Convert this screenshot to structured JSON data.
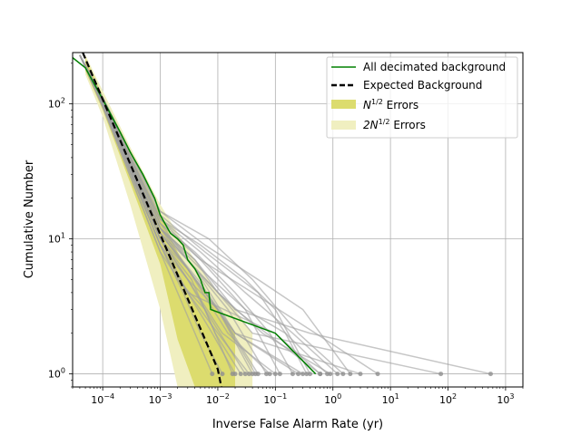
{
  "chart_data": {
    "type": "line",
    "xscale": "log",
    "yscale": "log",
    "xlabel": "Inverse False Alarm Rate (yr)",
    "ylabel": "Cumulative Number",
    "xlim": [
      3e-05,
      2000
    ],
    "ylim": [
      0.8,
      240
    ],
    "grid": true,
    "legend_position": "top-right",
    "x_ticks": [
      {
        "value": 0.0001,
        "base": "10",
        "exp": "−4"
      },
      {
        "value": 0.001,
        "base": "10",
        "exp": "−3"
      },
      {
        "value": 0.01,
        "base": "10",
        "exp": "−2"
      },
      {
        "value": 0.1,
        "base": "10",
        "exp": "−1"
      },
      {
        "value": 1,
        "base": "10",
        "exp": "0"
      },
      {
        "value": 10,
        "base": "10",
        "exp": "1"
      },
      {
        "value": 100,
        "base": "10",
        "exp": "2"
      },
      {
        "value": 1000,
        "base": "10",
        "exp": "3"
      }
    ],
    "y_ticks": [
      {
        "value": 1,
        "base": "10",
        "exp": "0"
      },
      {
        "value": 10,
        "base": "10",
        "exp": "1"
      },
      {
        "value": 100,
        "base": "10",
        "exp": "2"
      }
    ],
    "legend": [
      {
        "label": "All decimated background",
        "style": "line",
        "color": "#008000"
      },
      {
        "label": "Expected Background",
        "style": "dashed",
        "color": "#000000"
      },
      {
        "label_base": "N",
        "label_sup": "1/2",
        "label_rest": " Errors",
        "style": "patch",
        "color": "#dcdc6e"
      },
      {
        "label_base": "2N",
        "label_sup": "1/2",
        "label_rest": " Errors",
        "style": "patch",
        "color": "#f0efc0"
      }
    ],
    "expected_background": {
      "color": "#000000",
      "points": [
        [
          4.5e-05,
          240
        ],
        [
          0.0001,
          108
        ],
        [
          0.001,
          10.8
        ],
        [
          0.01,
          1.08
        ],
        [
          0.0115,
          0.8
        ]
      ]
    },
    "error_band_1sigma": {
      "color": "#dcdc6e",
      "x": [
        5e-05,
        0.0001,
        0.0003,
        0.001,
        0.002,
        0.004,
        0.01,
        0.02
      ],
      "upper": [
        220,
        115,
        42,
        15,
        8,
        5,
        3,
        2
      ],
      "lower": [
        175,
        90,
        26,
        6.5,
        1.8,
        0.8,
        0.8,
        0.8
      ]
    },
    "error_band_2sigma": {
      "color": "#f0efc0",
      "x": [
        5e-05,
        0.0001,
        0.0003,
        0.001,
        0.002,
        0.004,
        0.01,
        0.02,
        0.04
      ],
      "upper": [
        230,
        125,
        48,
        18,
        11,
        7,
        4,
        3,
        2
      ],
      "lower": [
        165,
        80,
        18,
        3,
        0.8,
        0.8,
        0.8,
        0.8,
        0.8
      ]
    },
    "all_decimated_background": {
      "color": "#008000",
      "points": [
        [
          3e-05,
          220
        ],
        [
          5e-05,
          185
        ],
        [
          0.0001,
          108
        ],
        [
          0.0002,
          62
        ],
        [
          0.0003,
          44
        ],
        [
          0.0005,
          30
        ],
        [
          0.0008,
          20
        ],
        [
          0.001,
          15
        ],
        [
          0.0015,
          11
        ],
        [
          0.002,
          10
        ],
        [
          0.0025,
          9
        ],
        [
          0.003,
          7
        ],
        [
          0.004,
          6
        ],
        [
          0.005,
          5
        ],
        [
          0.006,
          4
        ],
        [
          0.007,
          4
        ],
        [
          0.0075,
          3
        ],
        [
          0.1,
          2
        ],
        [
          0.5,
          1
        ]
      ]
    },
    "background_realizations": {
      "color": "#a0a0a0",
      "tail_marker_color": "#909090",
      "curves": [
        {
          "pts": [
            [
              4e-05,
              230
            ],
            [
              0.0001,
              100
            ],
            [
              0.001,
              10
            ],
            [
              0.003,
              6
            ],
            [
              0.01,
              3
            ],
            [
              0.05,
              1
            ]
          ]
        },
        {
          "pts": [
            [
              4e-05,
              230
            ],
            [
              0.0001,
              110
            ],
            [
              0.001,
              13
            ],
            [
              0.004,
              6
            ],
            [
              0.02,
              2
            ],
            [
              0.3,
              1
            ]
          ]
        },
        {
          "pts": [
            [
              4e-05,
              230
            ],
            [
              0.0001,
              95
            ],
            [
              0.001,
              8
            ],
            [
              0.003,
              4
            ],
            [
              0.008,
              2
            ],
            [
              0.02,
              1
            ]
          ]
        },
        {
          "pts": [
            [
              4e-05,
              230
            ],
            [
              0.0001,
              105
            ],
            [
              0.001,
              14
            ],
            [
              0.005,
              8
            ],
            [
              0.03,
              4
            ],
            [
              0.2,
              2
            ],
            [
              1.2,
              1
            ]
          ]
        },
        {
          "pts": [
            [
              4e-05,
              230
            ],
            [
              0.0001,
              100
            ],
            [
              0.001,
              12
            ],
            [
              0.004,
              7
            ],
            [
              0.02,
              3
            ],
            [
              0.6,
              1
            ]
          ]
        },
        {
          "pts": [
            [
              4e-05,
              230
            ],
            [
              0.0001,
              98
            ],
            [
              0.001,
              9
            ],
            [
              0.002,
              5
            ],
            [
              0.006,
              3
            ],
            [
              0.03,
              1
            ]
          ]
        },
        {
          "pts": [
            [
              4e-05,
              230
            ],
            [
              0.0001,
              112
            ],
            [
              0.001,
              16
            ],
            [
              0.006,
              9
            ],
            [
              0.05,
              5
            ],
            [
              0.3,
              3
            ],
            [
              2,
              1
            ]
          ]
        },
        {
          "pts": [
            [
              4e-05,
              230
            ],
            [
              0.0001,
              100
            ],
            [
              0.001,
              11
            ],
            [
              0.003,
              6
            ],
            [
              0.015,
              2
            ],
            [
              0.08,
              1
            ]
          ]
        },
        {
          "pts": [
            [
              4e-05,
              230
            ],
            [
              0.0001,
              96
            ],
            [
              0.001,
              9
            ],
            [
              0.0025,
              4
            ],
            [
              0.005,
              2
            ],
            [
              0.012,
              1
            ]
          ]
        },
        {
          "pts": [
            [
              4e-05,
              230
            ],
            [
              0.0001,
              108
            ],
            [
              0.001,
              13
            ],
            [
              0.005,
              7
            ],
            [
              0.03,
              3
            ],
            [
              0.15,
              2
            ],
            [
              0.8,
              1
            ]
          ]
        },
        {
          "pts": [
            [
              4e-05,
              230
            ],
            [
              0.0001,
              102
            ],
            [
              0.001,
              12
            ],
            [
              0.004,
              5
            ],
            [
              0.02,
              2
            ],
            [
              3,
              1
            ]
          ]
        },
        {
          "pts": [
            [
              4e-05,
              230
            ],
            [
              0.0001,
              99
            ],
            [
              0.001,
              10
            ],
            [
              0.003,
              5
            ],
            [
              0.01,
              3
            ],
            [
              0.04,
              1
            ]
          ]
        },
        {
          "pts": [
            [
              4e-05,
              230
            ],
            [
              0.0001,
              106
            ],
            [
              0.001,
              14
            ],
            [
              0.005,
              7
            ],
            [
              0.04,
              4
            ],
            [
              0.5,
              2
            ],
            [
              6,
              1
            ]
          ]
        },
        {
          "pts": [
            [
              4e-05,
              230
            ],
            [
              0.0001,
              104
            ],
            [
              0.001,
              11
            ],
            [
              0.003,
              7
            ],
            [
              0.01,
              4
            ],
            [
              0.04,
              2
            ],
            [
              75,
              1
            ]
          ]
        },
        {
          "pts": [
            [
              4e-05,
              230
            ],
            [
              0.0001,
              101
            ],
            [
              0.001,
              12
            ],
            [
              0.004,
              6
            ],
            [
              0.02,
              3
            ],
            [
              0.4,
              2
            ],
            [
              550,
              1
            ]
          ]
        },
        {
          "pts": [
            [
              4e-05,
              230
            ],
            [
              0.0001,
              98
            ],
            [
              0.001,
              10
            ],
            [
              0.003,
              4
            ],
            [
              0.1,
              2
            ],
            [
              0.6,
              1
            ]
          ]
        },
        {
          "pts": [
            [
              4e-05,
              230
            ],
            [
              0.0001,
              110
            ],
            [
              0.001,
              15
            ],
            [
              0.006,
              8
            ],
            [
              0.05,
              4
            ],
            [
              0.15,
              2
            ],
            [
              0.35,
              1
            ]
          ]
        },
        {
          "pts": [
            [
              4e-05,
              230
            ],
            [
              0.0001,
              97
            ],
            [
              0.001,
              9
            ],
            [
              0.003,
              5
            ],
            [
              0.012,
              2
            ],
            [
              0.1,
              1
            ]
          ]
        },
        {
          "pts": [
            [
              4e-05,
              230
            ],
            [
              0.0001,
              103
            ],
            [
              0.001,
              12
            ],
            [
              0.004,
              6
            ],
            [
              0.015,
              3
            ],
            [
              0.07,
              1
            ]
          ]
        },
        {
          "pts": [
            [
              4e-05,
              230
            ],
            [
              0.0001,
              100
            ],
            [
              0.001,
              10
            ],
            [
              0.0035,
              5
            ],
            [
              0.009,
              2
            ],
            [
              0.025,
              1
            ]
          ]
        },
        {
          "pts": [
            [
              4e-05,
              230
            ],
            [
              0.0001,
              107
            ],
            [
              0.001,
              13
            ],
            [
              0.004,
              8
            ],
            [
              0.02,
              4
            ],
            [
              0.08,
              2
            ],
            [
              0.2,
              1
            ]
          ]
        },
        {
          "pts": [
            [
              4e-05,
              230
            ],
            [
              0.0001,
              95
            ],
            [
              0.001,
              8
            ],
            [
              0.002,
              4
            ],
            [
              0.004,
              2
            ],
            [
              0.008,
              1
            ]
          ]
        },
        {
          "pts": [
            [
              4e-05,
              230
            ],
            [
              0.0001,
              109
            ],
            [
              0.001,
              14
            ],
            [
              0.005,
              9
            ],
            [
              0.03,
              5
            ],
            [
              0.1,
              3
            ],
            [
              0.4,
              1
            ]
          ]
        },
        {
          "pts": [
            [
              4e-05,
              230
            ],
            [
              0.0001,
              101
            ],
            [
              0.001,
              11
            ],
            [
              0.003,
              6
            ],
            [
              0.01,
              3
            ],
            [
              0.045,
              1
            ]
          ]
        },
        {
          "pts": [
            [
              4e-05,
              230
            ],
            [
              0.0001,
              104
            ],
            [
              0.001,
              12
            ],
            [
              0.004,
              7
            ],
            [
              0.01,
              4
            ],
            [
              0.06,
              2
            ],
            [
              0.9,
              1
            ]
          ]
        },
        {
          "pts": [
            [
              4e-05,
              230
            ],
            [
              0.0001,
              99
            ],
            [
              0.001,
              10
            ],
            [
              0.003,
              5
            ],
            [
              0.006,
              3
            ],
            [
              0.018,
              1
            ]
          ]
        },
        {
          "pts": [
            [
              4e-05,
              230
            ],
            [
              0.0001,
              106
            ],
            [
              0.001,
              12
            ],
            [
              0.005,
              6
            ],
            [
              0.03,
              3
            ],
            [
              0.12,
              1
            ]
          ]
        },
        {
          "pts": [
            [
              4e-05,
              230
            ],
            [
              0.0001,
              100
            ],
            [
              0.001,
              11
            ],
            [
              0.0045,
              5
            ],
            [
              0.02,
              2
            ],
            [
              0.25,
              1
            ]
          ]
        },
        {
          "pts": [
            [
              4e-05,
              230
            ],
            [
              0.0001,
              102
            ],
            [
              0.001,
              9
            ],
            [
              0.003,
              4
            ],
            [
              0.01,
              2
            ],
            [
              0.035,
              1
            ]
          ]
        },
        {
          "pts": [
            [
              4e-05,
              230
            ],
            [
              0.0001,
              111
            ],
            [
              0.001,
              16
            ],
            [
              0.007,
              10
            ],
            [
              0.04,
              5
            ],
            [
              0.25,
              2
            ],
            [
              1.5,
              1
            ]
          ]
        }
      ]
    }
  }
}
